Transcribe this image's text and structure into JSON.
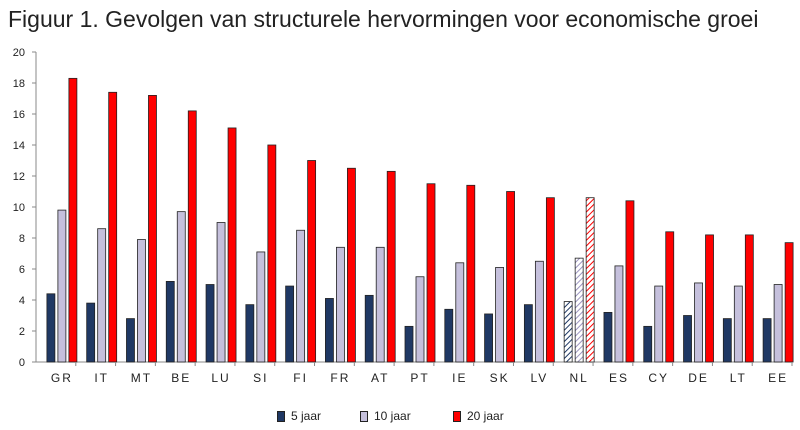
{
  "title": "Figuur 1. Gevolgen van structurele hervormingen voor economische groei",
  "chart_data": {
    "type": "bar",
    "categories": [
      "GR",
      "IT",
      "MT",
      "BE",
      "LU",
      "SI",
      "FI",
      "FR",
      "AT",
      "PT",
      "IE",
      "SK",
      "LV",
      "NL",
      "ES",
      "CY",
      "DE",
      "LT",
      "EE"
    ],
    "series": [
      {
        "name": "5 jaar",
        "color": "#1f3864",
        "values": [
          4.4,
          3.8,
          2.8,
          5.2,
          5.0,
          3.7,
          4.9,
          4.1,
          4.3,
          2.3,
          3.4,
          3.1,
          3.7,
          3.9,
          3.2,
          2.3,
          3.0,
          2.8,
          2.8
        ]
      },
      {
        "name": "10 jaar",
        "color": "#c5c0dc",
        "values": [
          9.8,
          8.6,
          7.9,
          9.7,
          9.0,
          7.1,
          8.5,
          7.4,
          7.4,
          5.5,
          6.4,
          6.1,
          6.5,
          6.7,
          6.2,
          4.9,
          5.1,
          4.9,
          5.0
        ]
      },
      {
        "name": "20 jaar",
        "color": "#ff0000",
        "values": [
          18.3,
          17.4,
          17.2,
          16.2,
          15.1,
          14.0,
          13.0,
          12.5,
          12.3,
          11.5,
          11.4,
          11.0,
          10.6,
          10.6,
          10.4,
          8.4,
          8.2,
          8.2,
          7.7
        ]
      }
    ],
    "hatched_category": "NL",
    "ylim": [
      0,
      20
    ],
    "yticks": [
      "0",
      "2",
      "4",
      "6",
      "8",
      "10",
      "12",
      "14",
      "16",
      "18",
      "20"
    ],
    "xlabel": "",
    "ylabel": "",
    "grid": false,
    "legend_position": "bottom"
  }
}
